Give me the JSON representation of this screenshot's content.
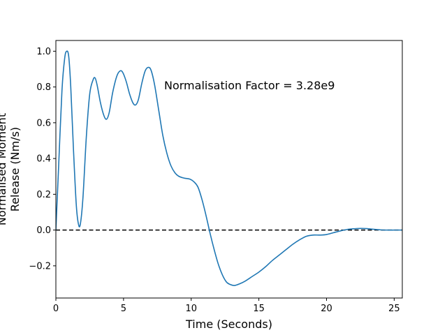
{
  "chart_data": {
    "type": "line",
    "title": "",
    "xlabel": "Time (Seconds)",
    "ylabel_lines": [
      "Normalised Moment",
      "Release (Nm/s)"
    ],
    "xlim": [
      0,
      25.6
    ],
    "ylim": [
      -0.38,
      1.06
    ],
    "x_ticks": [
      0,
      5,
      10,
      15,
      20,
      25
    ],
    "y_ticks": [
      -0.2,
      0.0,
      0.2,
      0.4,
      0.6,
      0.8,
      1.0
    ],
    "x_tick_labels": [
      "0",
      "5",
      "10",
      "15",
      "20",
      "25"
    ],
    "y_tick_labels": [
      "−0.2",
      "0.0",
      "0.2",
      "0.4",
      "0.6",
      "0.8",
      "1.0"
    ],
    "grid": false,
    "annotation": {
      "text": "Normalisation Factor = 3.28e9",
      "x": 8.0,
      "y": 0.81
    },
    "reference_line": {
      "y": 0.0,
      "style": "dashed",
      "color": "#000000"
    },
    "series": [
      {
        "color": "#1f77b4",
        "points": [
          [
            0.0,
            0.0
          ],
          [
            0.2,
            0.35
          ],
          [
            0.45,
            0.78
          ],
          [
            0.65,
            0.96
          ],
          [
            0.8,
            1.0
          ],
          [
            0.95,
            0.97
          ],
          [
            1.1,
            0.8
          ],
          [
            1.3,
            0.45
          ],
          [
            1.5,
            0.15
          ],
          [
            1.65,
            0.04
          ],
          [
            1.8,
            0.03
          ],
          [
            2.0,
            0.18
          ],
          [
            2.25,
            0.52
          ],
          [
            2.5,
            0.76
          ],
          [
            2.75,
            0.84
          ],
          [
            2.9,
            0.85
          ],
          [
            3.05,
            0.81
          ],
          [
            3.3,
            0.71
          ],
          [
            3.55,
            0.64
          ],
          [
            3.75,
            0.62
          ],
          [
            3.95,
            0.66
          ],
          [
            4.2,
            0.77
          ],
          [
            4.5,
            0.86
          ],
          [
            4.75,
            0.89
          ],
          [
            4.95,
            0.88
          ],
          [
            5.2,
            0.83
          ],
          [
            5.45,
            0.76
          ],
          [
            5.7,
            0.71
          ],
          [
            5.9,
            0.7
          ],
          [
            6.1,
            0.73
          ],
          [
            6.35,
            0.82
          ],
          [
            6.6,
            0.89
          ],
          [
            6.85,
            0.91
          ],
          [
            7.05,
            0.89
          ],
          [
            7.3,
            0.81
          ],
          [
            7.6,
            0.67
          ],
          [
            7.9,
            0.53
          ],
          [
            8.2,
            0.43
          ],
          [
            8.5,
            0.36
          ],
          [
            8.8,
            0.32
          ],
          [
            9.1,
            0.3
          ],
          [
            9.5,
            0.29
          ],
          [
            9.9,
            0.285
          ],
          [
            10.2,
            0.27
          ],
          [
            10.5,
            0.24
          ],
          [
            10.8,
            0.17
          ],
          [
            11.1,
            0.08
          ],
          [
            11.4,
            -0.02
          ],
          [
            11.7,
            -0.11
          ],
          [
            12.0,
            -0.19
          ],
          [
            12.3,
            -0.25
          ],
          [
            12.6,
            -0.29
          ],
          [
            12.9,
            -0.305
          ],
          [
            13.2,
            -0.31
          ],
          [
            13.6,
            -0.3
          ],
          [
            14.0,
            -0.285
          ],
          [
            14.5,
            -0.26
          ],
          [
            15.0,
            -0.235
          ],
          [
            15.5,
            -0.205
          ],
          [
            16.0,
            -0.17
          ],
          [
            16.5,
            -0.14
          ],
          [
            17.0,
            -0.11
          ],
          [
            17.5,
            -0.08
          ],
          [
            18.0,
            -0.055
          ],
          [
            18.5,
            -0.035
          ],
          [
            19.0,
            -0.028
          ],
          [
            19.5,
            -0.028
          ],
          [
            20.0,
            -0.025
          ],
          [
            20.5,
            -0.015
          ],
          [
            21.0,
            -0.005
          ],
          [
            21.5,
            0.003
          ],
          [
            22.0,
            0.007
          ],
          [
            22.5,
            0.009
          ],
          [
            23.0,
            0.008
          ],
          [
            23.5,
            0.004
          ],
          [
            24.0,
            0.001
          ],
          [
            24.5,
            0.0
          ],
          [
            25.0,
            0.0
          ],
          [
            25.6,
            0.0
          ]
        ]
      }
    ]
  }
}
